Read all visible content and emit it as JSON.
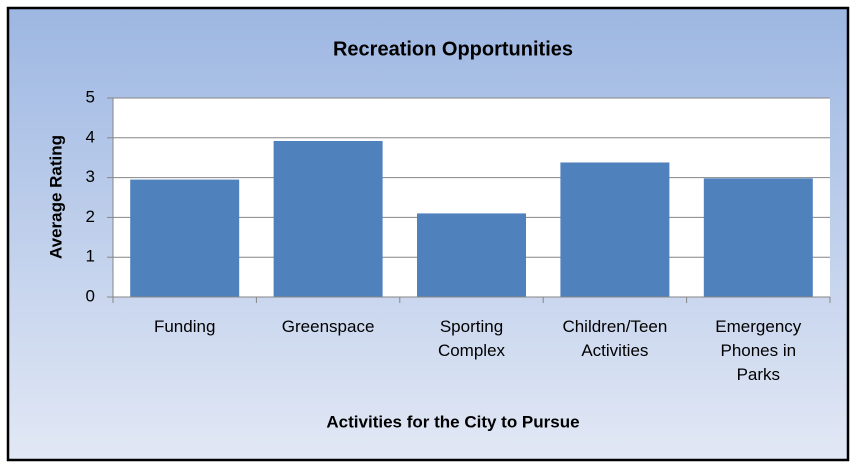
{
  "chart_data": {
    "type": "bar",
    "title": "Recreation Opportunities",
    "x_label": "Activities for the City to Pursue",
    "y_label": "Average Rating",
    "categories": [
      "Funding",
      "Greenspace",
      "Sporting Complex",
      "Children/Teen Activities",
      "Emergency Phones in Parks"
    ],
    "values": [
      2.95,
      3.92,
      2.1,
      3.38,
      2.98
    ],
    "color": "#4f81bd",
    "ylim": [
      0,
      5
    ],
    "yticks": [
      0,
      1,
      2,
      3,
      4,
      5
    ],
    "grid": true
  }
}
